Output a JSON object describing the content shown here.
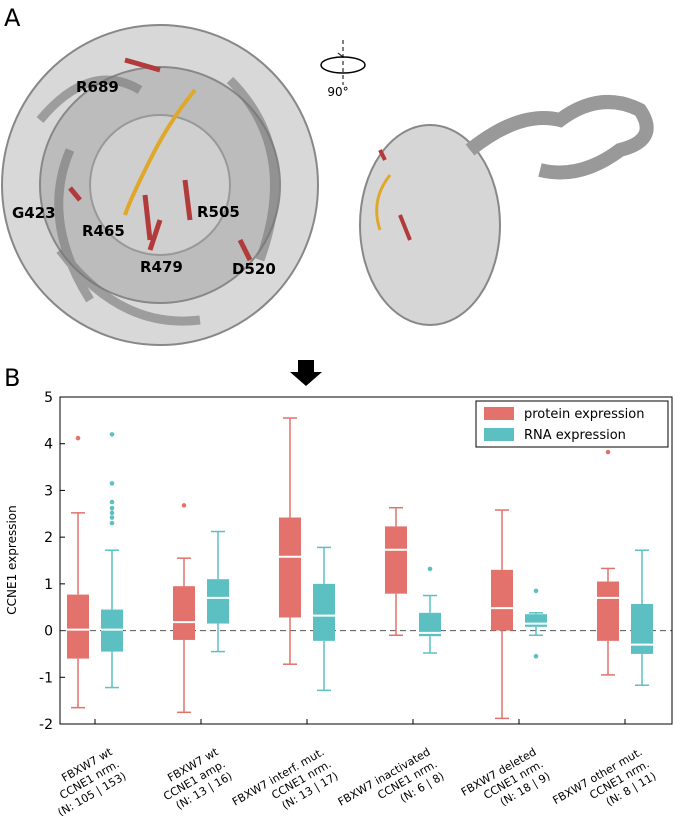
{
  "panel_a": {
    "label": "A",
    "rotation": "90°",
    "residues": [
      "R689",
      "G423",
      "R465",
      "R505",
      "R479",
      "D520"
    ]
  },
  "chart_data": {
    "type": "box",
    "panel_label": "B",
    "ylabel": "CCNE1 expression",
    "categories": [
      [
        "FBXW7 wt",
        "CCNE1 nrm.",
        "(N: 105 | 153)"
      ],
      [
        "FBXW7 wt",
        "CCNE1 amp.",
        "(N: 13 | 16)"
      ],
      [
        "FBXW7 interf. mut.",
        "CCNE1 nrm.",
        "(N: 13 | 17)"
      ],
      [
        "FBXW7 inactivated",
        "CCNE1 nrm.",
        "(N: 6 | 8)"
      ],
      [
        "FBXW7 deleted",
        "CCNE1 nrm.",
        "(N: 18 | 9)"
      ],
      [
        "FBXW7 other mut.",
        "CCNE1 nrm.",
        "(N: 8 | 11)"
      ]
    ],
    "series": [
      {
        "name": "protein expression",
        "color": "#e2726b",
        "whisker_low": [
          -1.65,
          -1.75,
          -0.72,
          -0.1,
          -1.88,
          -0.95
        ],
        "q1": [
          -0.6,
          -0.2,
          0.28,
          0.79,
          0.0,
          -0.22
        ],
        "median": [
          0.02,
          0.18,
          1.58,
          1.73,
          0.48,
          0.7
        ],
        "q3": [
          0.77,
          0.95,
          2.42,
          2.23,
          1.3,
          1.05
        ],
        "whisker_high": [
          2.52,
          1.55,
          4.55,
          2.63,
          2.58,
          1.33
        ],
        "outliers": [
          [
            4.12
          ],
          [
            2.68
          ],
          [],
          [],
          [],
          [
            3.82
          ]
        ]
      },
      {
        "name": "RNA expression",
        "color": "#5cc0c2",
        "whisker_low": [
          -1.22,
          -0.45,
          -1.28,
          -0.48,
          -0.1,
          -1.17
        ],
        "q1": [
          -0.45,
          0.15,
          -0.22,
          -0.12,
          0.08,
          -0.5
        ],
        "median": [
          0.02,
          0.7,
          0.32,
          -0.05,
          0.15,
          -0.3
        ],
        "q3": [
          0.45,
          1.1,
          1.0,
          0.38,
          0.35,
          0.57
        ],
        "whisker_high": [
          1.72,
          2.12,
          1.78,
          0.75,
          0.38,
          1.72
        ],
        "outliers": [
          [
            2.3,
            2.42,
            2.52,
            2.62,
            2.75,
            3.15,
            4.2
          ],
          [],
          [],
          [
            1.32
          ],
          [
            0.85,
            -0.55
          ],
          []
        ]
      }
    ],
    "ylim": [
      -2,
      5
    ],
    "yticks": [
      -2,
      -1,
      0,
      1,
      2,
      3,
      4,
      5
    ],
    "hline": 0,
    "legend": "upper right"
  }
}
